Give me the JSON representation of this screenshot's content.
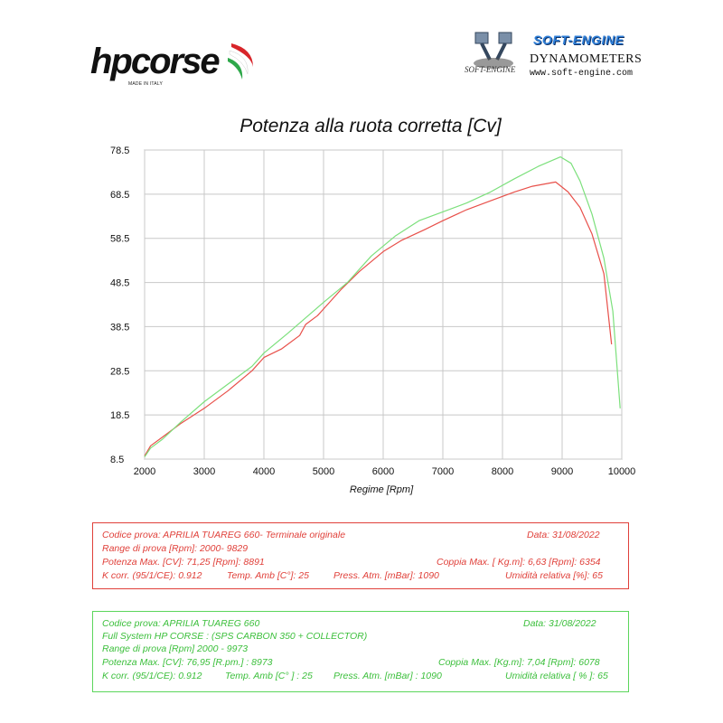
{
  "logos": {
    "hp": {
      "name": "hpcorse",
      "tagline": "MADE IN ITALY"
    },
    "se": {
      "title": "SOFT-ENGINE",
      "subtitle": "DYNAMOMETERS",
      "website": "www.soft-engine.com",
      "mark": "SOFT-ENGINE"
    }
  },
  "chart_data": {
    "type": "line",
    "title": "Potenza alla ruota corretta [Cv]",
    "xlabel": "Regime [Rpm]",
    "ylabel": "",
    "xlim": [
      2000,
      10000
    ],
    "ylim": [
      8.5,
      78.5
    ],
    "x_ticks": [
      2000,
      3000,
      4000,
      5000,
      6000,
      7000,
      8000,
      9000,
      10000
    ],
    "y_ticks": [
      8.5,
      18.5,
      28.5,
      38.5,
      48.5,
      58.5,
      68.5,
      78.5
    ],
    "y_tick_labels": [
      "8.5",
      "18.5",
      "28.5",
      "38.5",
      "48.5",
      "58.5",
      "68.5",
      "78.5"
    ],
    "grid": true,
    "series": [
      {
        "color": "#e8504a",
        "x": [
          2000,
          2100,
          2300,
          2600,
          3000,
          3400,
          3800,
          4000,
          4300,
          4600,
          4700,
          4900,
          5000,
          5300,
          5600,
          6000,
          6300,
          6700,
          7000,
          7400,
          7800,
          8200,
          8500,
          8891,
          9100,
          9300,
          9500,
          9700,
          9829
        ],
        "y": [
          9.2,
          11.5,
          13.5,
          16.5,
          20.0,
          24.0,
          28.5,
          31.5,
          33.5,
          36.5,
          39.0,
          41.0,
          42.5,
          47.0,
          51.0,
          55.5,
          58.0,
          60.5,
          62.5,
          65.0,
          67.0,
          69.0,
          70.3,
          71.25,
          69.0,
          65.5,
          59.5,
          50.5,
          34.5
        ]
      },
      {
        "color": "#7ce07c",
        "x": [
          2000,
          2100,
          2300,
          2600,
          3000,
          3400,
          3800,
          4000,
          4400,
          5000,
          5400,
          5800,
          6200,
          6600,
          7000,
          7400,
          7800,
          8200,
          8600,
          8973,
          9150,
          9300,
          9500,
          9700,
          9850,
          9973
        ],
        "y": [
          9.0,
          11.0,
          13.0,
          16.8,
          21.5,
          25.5,
          29.5,
          32.5,
          37.0,
          44.0,
          48.5,
          54.5,
          59.0,
          62.5,
          64.5,
          66.5,
          69.0,
          72.0,
          74.8,
          76.95,
          75.5,
          71.5,
          64.0,
          54.0,
          42.0,
          20.0
        ]
      }
    ]
  },
  "tests": [
    {
      "color": "#e0403a",
      "code": "Codice prova: APRILIA TUAREG 660- Terminale originale",
      "date": "Data: 31/08/2022",
      "range": "Range di prova  [Rpm]: 2000- 9829",
      "power": "Potenza Max. [CV]:   71,25 [Rpm]: 8891",
      "torque": "Coppia Max. [ Kg.m]:  6,63 [Rpm]: 6354",
      "kcorr": "K corr. (95/1/CE): 0.912",
      "temp": "Temp. Amb  [C°]: 25",
      "press": "Press. Atm.  [mBar]: 1090",
      "humidity": "Umidità relativa [%]: 65"
    },
    {
      "color": "#3bbf3b",
      "code": "Codice prova: APRILIA TUAREG 660",
      "date": "Data: 31/08/2022",
      "system": "Full System HP CORSE :  (SPS CARBON 350 +  COLLECTOR)",
      "range": "Range di prova [Rpm] 2000 - 9973",
      "power": "Potenza Max. [CV]:  76,95 [R.pm.] : 8973",
      "torque": "Coppia Max.  [Kg.m]:  7,04  [Rpm]: 6078",
      "kcorr": "K corr. (95/1/CE): 0.912",
      "temp": "Temp. Amb [C° ] : 25",
      "press": "Press. Atm. [mBar] : 1090",
      "humidity": "Umidità relativa [ % ]: 65"
    }
  ]
}
